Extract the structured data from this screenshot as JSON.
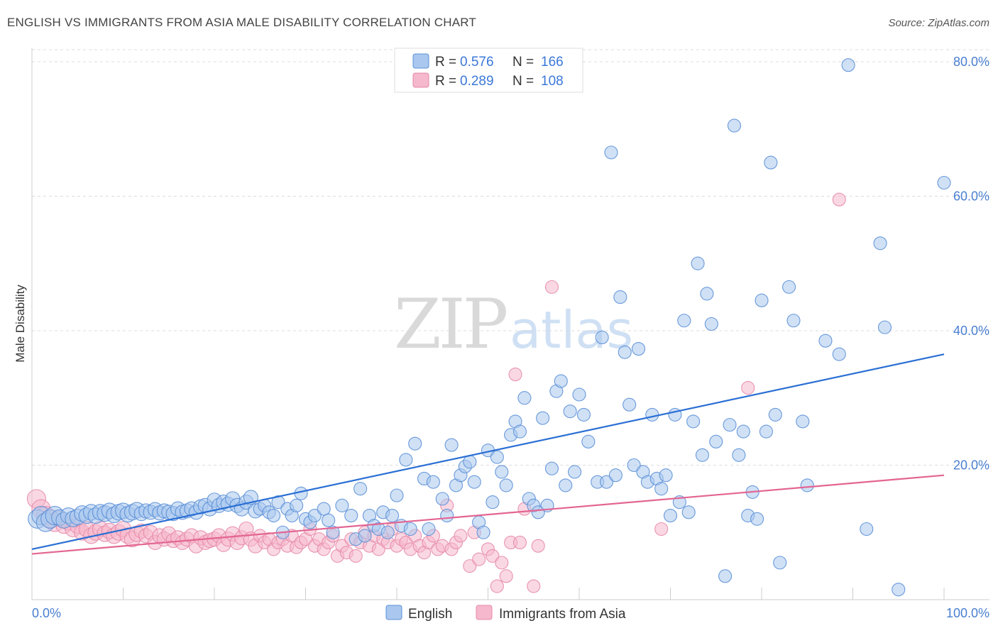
{
  "title": "ENGLISH VS IMMIGRANTS FROM ASIA MALE DISABILITY CORRELATION CHART",
  "source": "Source: ZipAtlas.com",
  "watermark": {
    "zip": "ZIP",
    "atlas": "atlas"
  },
  "colors": {
    "english_fill": "#aac8ef",
    "english_stroke": "#5b8fd6",
    "english_line": "#2a6fd4",
    "asia_fill": "#f5b8cc",
    "asia_stroke": "#e58aa8",
    "asia_line": "#e36592",
    "grid": "#dcdcdc",
    "tick_label": "#4a7fd0"
  },
  "legend": {
    "r_label": "R =",
    "n_label": "N =",
    "items": [
      {
        "name": "English",
        "r": "0.576",
        "n": "166"
      },
      {
        "name": "Immigrants from Asia",
        "r": "0.289",
        "n": "108"
      }
    ]
  },
  "chart_data": {
    "type": "scatter",
    "title": "ENGLISH VS IMMIGRANTS FROM ASIA MALE DISABILITY CORRELATION CHART",
    "xlabel": "",
    "ylabel": "Male Disability",
    "xlim": [
      0,
      100
    ],
    "ylim": [
      0,
      82
    ],
    "x_tick_labels": [
      "0.0%",
      "100.0%"
    ],
    "y_ticks": [
      20,
      40,
      60,
      80
    ],
    "y_tick_labels": [
      "20.0%",
      "40.0%",
      "60.0%",
      "80.0%"
    ],
    "grid": true,
    "series": [
      {
        "name": "English",
        "trend": {
          "x": [
            0,
            100
          ],
          "y": [
            7.5,
            36.5
          ]
        },
        "points": [
          [
            0.6,
            12.0
          ],
          [
            1.0,
            12.5
          ],
          [
            1.5,
            11.5
          ],
          [
            2.0,
            12.0
          ],
          [
            2.5,
            12.5
          ],
          [
            3.0,
            12.2
          ],
          [
            3.5,
            11.8
          ],
          [
            4.0,
            12.5
          ],
          [
            4.5,
            12.0
          ],
          [
            5.0,
            12.3
          ],
          [
            5.5,
            12.8
          ],
          [
            6.0,
            12.5
          ],
          [
            6.5,
            13.0
          ],
          [
            7.0,
            12.5
          ],
          [
            7.5,
            13.0
          ],
          [
            8.0,
            12.8
          ],
          [
            8.5,
            13.2
          ],
          [
            9.0,
            12.6
          ],
          [
            9.5,
            13.0
          ],
          [
            10.0,
            13.2
          ],
          [
            10.5,
            12.7
          ],
          [
            11.0,
            13.0
          ],
          [
            11.5,
            13.3
          ],
          [
            12.0,
            12.8
          ],
          [
            12.5,
            13.2
          ],
          [
            13.0,
            13.0
          ],
          [
            13.5,
            13.4
          ],
          [
            14.0,
            12.9
          ],
          [
            14.5,
            13.2
          ],
          [
            15.0,
            13.0
          ],
          [
            15.5,
            12.8
          ],
          [
            16.0,
            13.5
          ],
          [
            16.5,
            13.0
          ],
          [
            17.0,
            13.2
          ],
          [
            17.5,
            13.5
          ],
          [
            18.0,
            13.0
          ],
          [
            18.5,
            13.8
          ],
          [
            19.0,
            14.0
          ],
          [
            19.5,
            13.5
          ],
          [
            20.0,
            14.8
          ],
          [
            20.5,
            14.0
          ],
          [
            21.0,
            14.5
          ],
          [
            21.5,
            14.2
          ],
          [
            22.0,
            15.0
          ],
          [
            22.5,
            14.0
          ],
          [
            23.0,
            13.5
          ],
          [
            23.5,
            14.5
          ],
          [
            24.0,
            15.2
          ],
          [
            24.5,
            13.2
          ],
          [
            25.0,
            13.5
          ],
          [
            25.5,
            14.0
          ],
          [
            26.0,
            13.0
          ],
          [
            26.5,
            12.5
          ],
          [
            27.0,
            14.5
          ],
          [
            27.5,
            10.0
          ],
          [
            28.0,
            13.5
          ],
          [
            28.5,
            12.5
          ],
          [
            29.0,
            14.0
          ],
          [
            29.5,
            15.8
          ],
          [
            30.0,
            12.0
          ],
          [
            30.5,
            11.5
          ],
          [
            31.0,
            12.5
          ],
          [
            32.0,
            13.5
          ],
          [
            32.5,
            11.8
          ],
          [
            33.0,
            10.0
          ],
          [
            34.0,
            14.0
          ],
          [
            35.0,
            12.5
          ],
          [
            35.5,
            9.0
          ],
          [
            36.0,
            16.5
          ],
          [
            36.5,
            9.5
          ],
          [
            37.0,
            12.5
          ],
          [
            37.5,
            11.0
          ],
          [
            38.0,
            10.5
          ],
          [
            38.5,
            13.0
          ],
          [
            39.0,
            10.0
          ],
          [
            39.5,
            12.5
          ],
          [
            40.0,
            15.5
          ],
          [
            40.5,
            11.0
          ],
          [
            41.0,
            20.8
          ],
          [
            41.5,
            10.5
          ],
          [
            42.0,
            23.2
          ],
          [
            43.0,
            18.0
          ],
          [
            43.5,
            10.5
          ],
          [
            44.0,
            17.5
          ],
          [
            45.0,
            15.0
          ],
          [
            45.5,
            12.5
          ],
          [
            46.0,
            23.0
          ],
          [
            46.5,
            17.0
          ],
          [
            47.0,
            18.5
          ],
          [
            47.5,
            19.8
          ],
          [
            48.0,
            20.5
          ],
          [
            48.5,
            17.5
          ],
          [
            49.0,
            11.5
          ],
          [
            49.5,
            10.0
          ],
          [
            50.0,
            22.2
          ],
          [
            50.5,
            14.5
          ],
          [
            51.0,
            21.2
          ],
          [
            51.5,
            19.0
          ],
          [
            52.0,
            17.0
          ],
          [
            52.5,
            24.5
          ],
          [
            53.0,
            26.5
          ],
          [
            53.5,
            25.0
          ],
          [
            54.0,
            30.0
          ],
          [
            54.5,
            15.0
          ],
          [
            55.0,
            14.0
          ],
          [
            55.5,
            13.0
          ],
          [
            56.0,
            27.0
          ],
          [
            56.5,
            14.0
          ],
          [
            57.0,
            19.5
          ],
          [
            57.5,
            31.0
          ],
          [
            58.0,
            32.5
          ],
          [
            58.5,
            17.0
          ],
          [
            59.0,
            28.0
          ],
          [
            59.5,
            19.0
          ],
          [
            60.0,
            30.5
          ],
          [
            60.5,
            27.5
          ],
          [
            61.0,
            23.5
          ],
          [
            62.0,
            17.5
          ],
          [
            62.5,
            39.0
          ],
          [
            63.0,
            17.5
          ],
          [
            63.5,
            66.5
          ],
          [
            64.0,
            18.5
          ],
          [
            64.5,
            45.0
          ],
          [
            65.0,
            36.8
          ],
          [
            65.5,
            29.0
          ],
          [
            66.0,
            20.0
          ],
          [
            66.5,
            37.3
          ],
          [
            67.0,
            19.0
          ],
          [
            67.5,
            17.5
          ],
          [
            68.0,
            27.5
          ],
          [
            68.5,
            18.0
          ],
          [
            69.0,
            16.5
          ],
          [
            69.5,
            18.5
          ],
          [
            70.0,
            12.5
          ],
          [
            70.5,
            27.5
          ],
          [
            71.0,
            14.5
          ],
          [
            71.5,
            41.5
          ],
          [
            72.0,
            13.0
          ],
          [
            72.5,
            26.5
          ],
          [
            73.0,
            50.0
          ],
          [
            73.5,
            21.5
          ],
          [
            74.0,
            45.5
          ],
          [
            74.5,
            41.0
          ],
          [
            75.0,
            23.5
          ],
          [
            76.0,
            3.5
          ],
          [
            76.5,
            26.0
          ],
          [
            77.0,
            70.5
          ],
          [
            77.5,
            21.5
          ],
          [
            78.0,
            25.0
          ],
          [
            78.5,
            12.5
          ],
          [
            79.0,
            16.0
          ],
          [
            79.5,
            12.0
          ],
          [
            80.0,
            44.5
          ],
          [
            80.5,
            25.0
          ],
          [
            81.0,
            65.0
          ],
          [
            81.5,
            27.5
          ],
          [
            82.0,
            5.5
          ],
          [
            83.0,
            46.5
          ],
          [
            83.5,
            41.5
          ],
          [
            84.5,
            26.5
          ],
          [
            85.0,
            17.0
          ],
          [
            87.0,
            38.5
          ],
          [
            88.5,
            36.5
          ],
          [
            89.5,
            79.5
          ],
          [
            91.5,
            10.5
          ],
          [
            93.0,
            53.0
          ],
          [
            93.5,
            40.5
          ],
          [
            95.0,
            1.5
          ],
          [
            100.0,
            62.0
          ]
        ]
      },
      {
        "name": "Immigrants from Asia",
        "trend": {
          "x": [
            0,
            100
          ],
          "y": [
            6.8,
            18.5
          ]
        },
        "points": [
          [
            0.5,
            15.0
          ],
          [
            1.0,
            13.5
          ],
          [
            1.5,
            12.5
          ],
          [
            2.0,
            12.0
          ],
          [
            2.5,
            11.5
          ],
          [
            3.0,
            12.0
          ],
          [
            3.5,
            11.0
          ],
          [
            4.0,
            11.5
          ],
          [
            4.5,
            10.5
          ],
          [
            5.0,
            11.0
          ],
          [
            5.5,
            10.0
          ],
          [
            6.0,
            10.5
          ],
          [
            6.5,
            9.5
          ],
          [
            7.0,
            10.0
          ],
          [
            7.5,
            10.5
          ],
          [
            8.0,
            9.8
          ],
          [
            8.5,
            10.2
          ],
          [
            9.0,
            9.5
          ],
          [
            9.5,
            10.0
          ],
          [
            10.0,
            10.5
          ],
          [
            10.5,
            9.5
          ],
          [
            11.0,
            9.0
          ],
          [
            11.5,
            9.8
          ],
          [
            12.0,
            10.2
          ],
          [
            12.5,
            9.5
          ],
          [
            13.0,
            10.0
          ],
          [
            13.5,
            8.5
          ],
          [
            14.0,
            9.5
          ],
          [
            14.5,
            9.0
          ],
          [
            15.0,
            9.8
          ],
          [
            15.5,
            8.8
          ],
          [
            16.0,
            9.2
          ],
          [
            16.5,
            8.5
          ],
          [
            17.0,
            9.0
          ],
          [
            17.5,
            9.5
          ],
          [
            18.0,
            8.0
          ],
          [
            18.5,
            9.2
          ],
          [
            19.0,
            8.5
          ],
          [
            19.5,
            8.8
          ],
          [
            20.0,
            9.0
          ],
          [
            20.5,
            9.5
          ],
          [
            21.0,
            8.2
          ],
          [
            21.5,
            9.0
          ],
          [
            22.0,
            9.8
          ],
          [
            22.5,
            8.5
          ],
          [
            23.0,
            9.2
          ],
          [
            23.5,
            10.5
          ],
          [
            24.0,
            9.0
          ],
          [
            24.5,
            8.0
          ],
          [
            25.0,
            9.5
          ],
          [
            25.5,
            8.5
          ],
          [
            26.0,
            9.0
          ],
          [
            26.5,
            7.5
          ],
          [
            27.0,
            8.5
          ],
          [
            27.5,
            9.0
          ],
          [
            28.0,
            8.0
          ],
          [
            28.5,
            9.5
          ],
          [
            29.0,
            7.8
          ],
          [
            29.5,
            8.5
          ],
          [
            30.0,
            9.0
          ],
          [
            30.5,
            10.5
          ],
          [
            31.0,
            8.0
          ],
          [
            31.5,
            9.0
          ],
          [
            32.0,
            7.5
          ],
          [
            32.5,
            8.5
          ],
          [
            33.0,
            9.5
          ],
          [
            33.5,
            6.5
          ],
          [
            34.0,
            8.0
          ],
          [
            34.5,
            7.0
          ],
          [
            35.0,
            9.0
          ],
          [
            35.5,
            6.5
          ],
          [
            36.0,
            8.5
          ],
          [
            36.5,
            10.0
          ],
          [
            37.0,
            8.0
          ],
          [
            37.5,
            9.5
          ],
          [
            38.0,
            7.5
          ],
          [
            38.5,
            9.0
          ],
          [
            39.0,
            8.5
          ],
          [
            39.5,
            10.5
          ],
          [
            40.0,
            8.0
          ],
          [
            40.5,
            9.0
          ],
          [
            41.0,
            8.5
          ],
          [
            41.5,
            7.5
          ],
          [
            42.0,
            9.5
          ],
          [
            42.5,
            8.0
          ],
          [
            43.0,
            7.0
          ],
          [
            43.5,
            8.5
          ],
          [
            44.0,
            9.5
          ],
          [
            44.5,
            7.5
          ],
          [
            45.0,
            8.0
          ],
          [
            45.5,
            14.0
          ],
          [
            46.0,
            7.5
          ],
          [
            46.5,
            8.5
          ],
          [
            47.0,
            9.5
          ],
          [
            48.0,
            5.0
          ],
          [
            48.5,
            10.0
          ],
          [
            49.0,
            6.0
          ],
          [
            50.0,
            7.5
          ],
          [
            50.5,
            6.5
          ],
          [
            51.0,
            2.0
          ],
          [
            51.5,
            5.5
          ],
          [
            52.0,
            3.5
          ],
          [
            52.5,
            8.5
          ],
          [
            53.0,
            33.5
          ],
          [
            53.5,
            8.5
          ],
          [
            54.0,
            13.5
          ],
          [
            55.0,
            2.0
          ],
          [
            55.5,
            8.0
          ],
          [
            57.0,
            46.5
          ],
          [
            69.0,
            10.5
          ],
          [
            78.5,
            31.5
          ],
          [
            88.5,
            59.5
          ]
        ]
      }
    ]
  }
}
